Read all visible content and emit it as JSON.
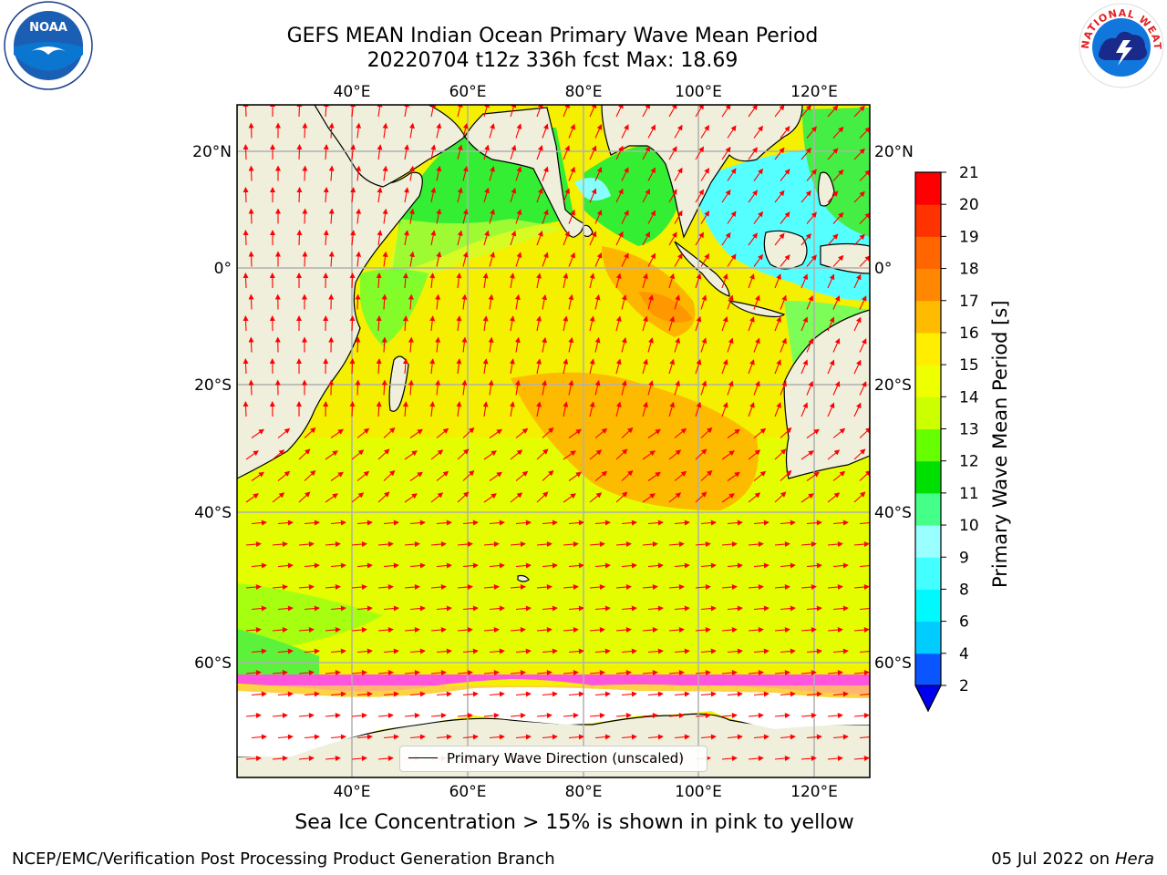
{
  "title_line1": "GEFS MEAN Indian Ocean Primary Wave Mean Period",
  "title_line2": "20220704 t12z 336h fcst   Max: 18.69",
  "logos": {
    "left": "noaa-logo",
    "right": "national-weather-service-logo",
    "left_text": "NOAA",
    "right_text": "NATIONAL WEATHER SERVICE"
  },
  "axes": {
    "lon_labels": [
      "40°E",
      "60°E",
      "80°E",
      "100°E",
      "120°E"
    ],
    "lat_labels": [
      "20°N",
      "0°",
      "20°S",
      "40°S",
      "60°S"
    ]
  },
  "colorbar": {
    "label": "Primary Wave Mean Period [s]",
    "ticks": [
      "2",
      "4",
      "6",
      "8",
      "9",
      "10",
      "11",
      "12",
      "13",
      "14",
      "15",
      "16",
      "17",
      "18",
      "19",
      "20",
      "21"
    ],
    "colors": [
      "#0a55ff",
      "#00ccff",
      "#00f8ff",
      "#44ffff",
      "#99ffff",
      "#44ff88",
      "#00e000",
      "#66ff00",
      "#ccff00",
      "#eeff00",
      "#ffee00",
      "#ffbb00",
      "#ff8800",
      "#ff6600",
      "#ff3300",
      "#ff0000"
    ],
    "extend_color": "#0000ee"
  },
  "legend": {
    "label": "Primary Wave Direction (unscaled)"
  },
  "subtitle": "Sea Ice Concentration > 15% is shown in pink to yellow",
  "footer_left": "NCEP/EMC/Verification Post Processing Product Generation Branch",
  "footer_date": "05 Jul 2022 on",
  "footer_host": "Hera"
}
